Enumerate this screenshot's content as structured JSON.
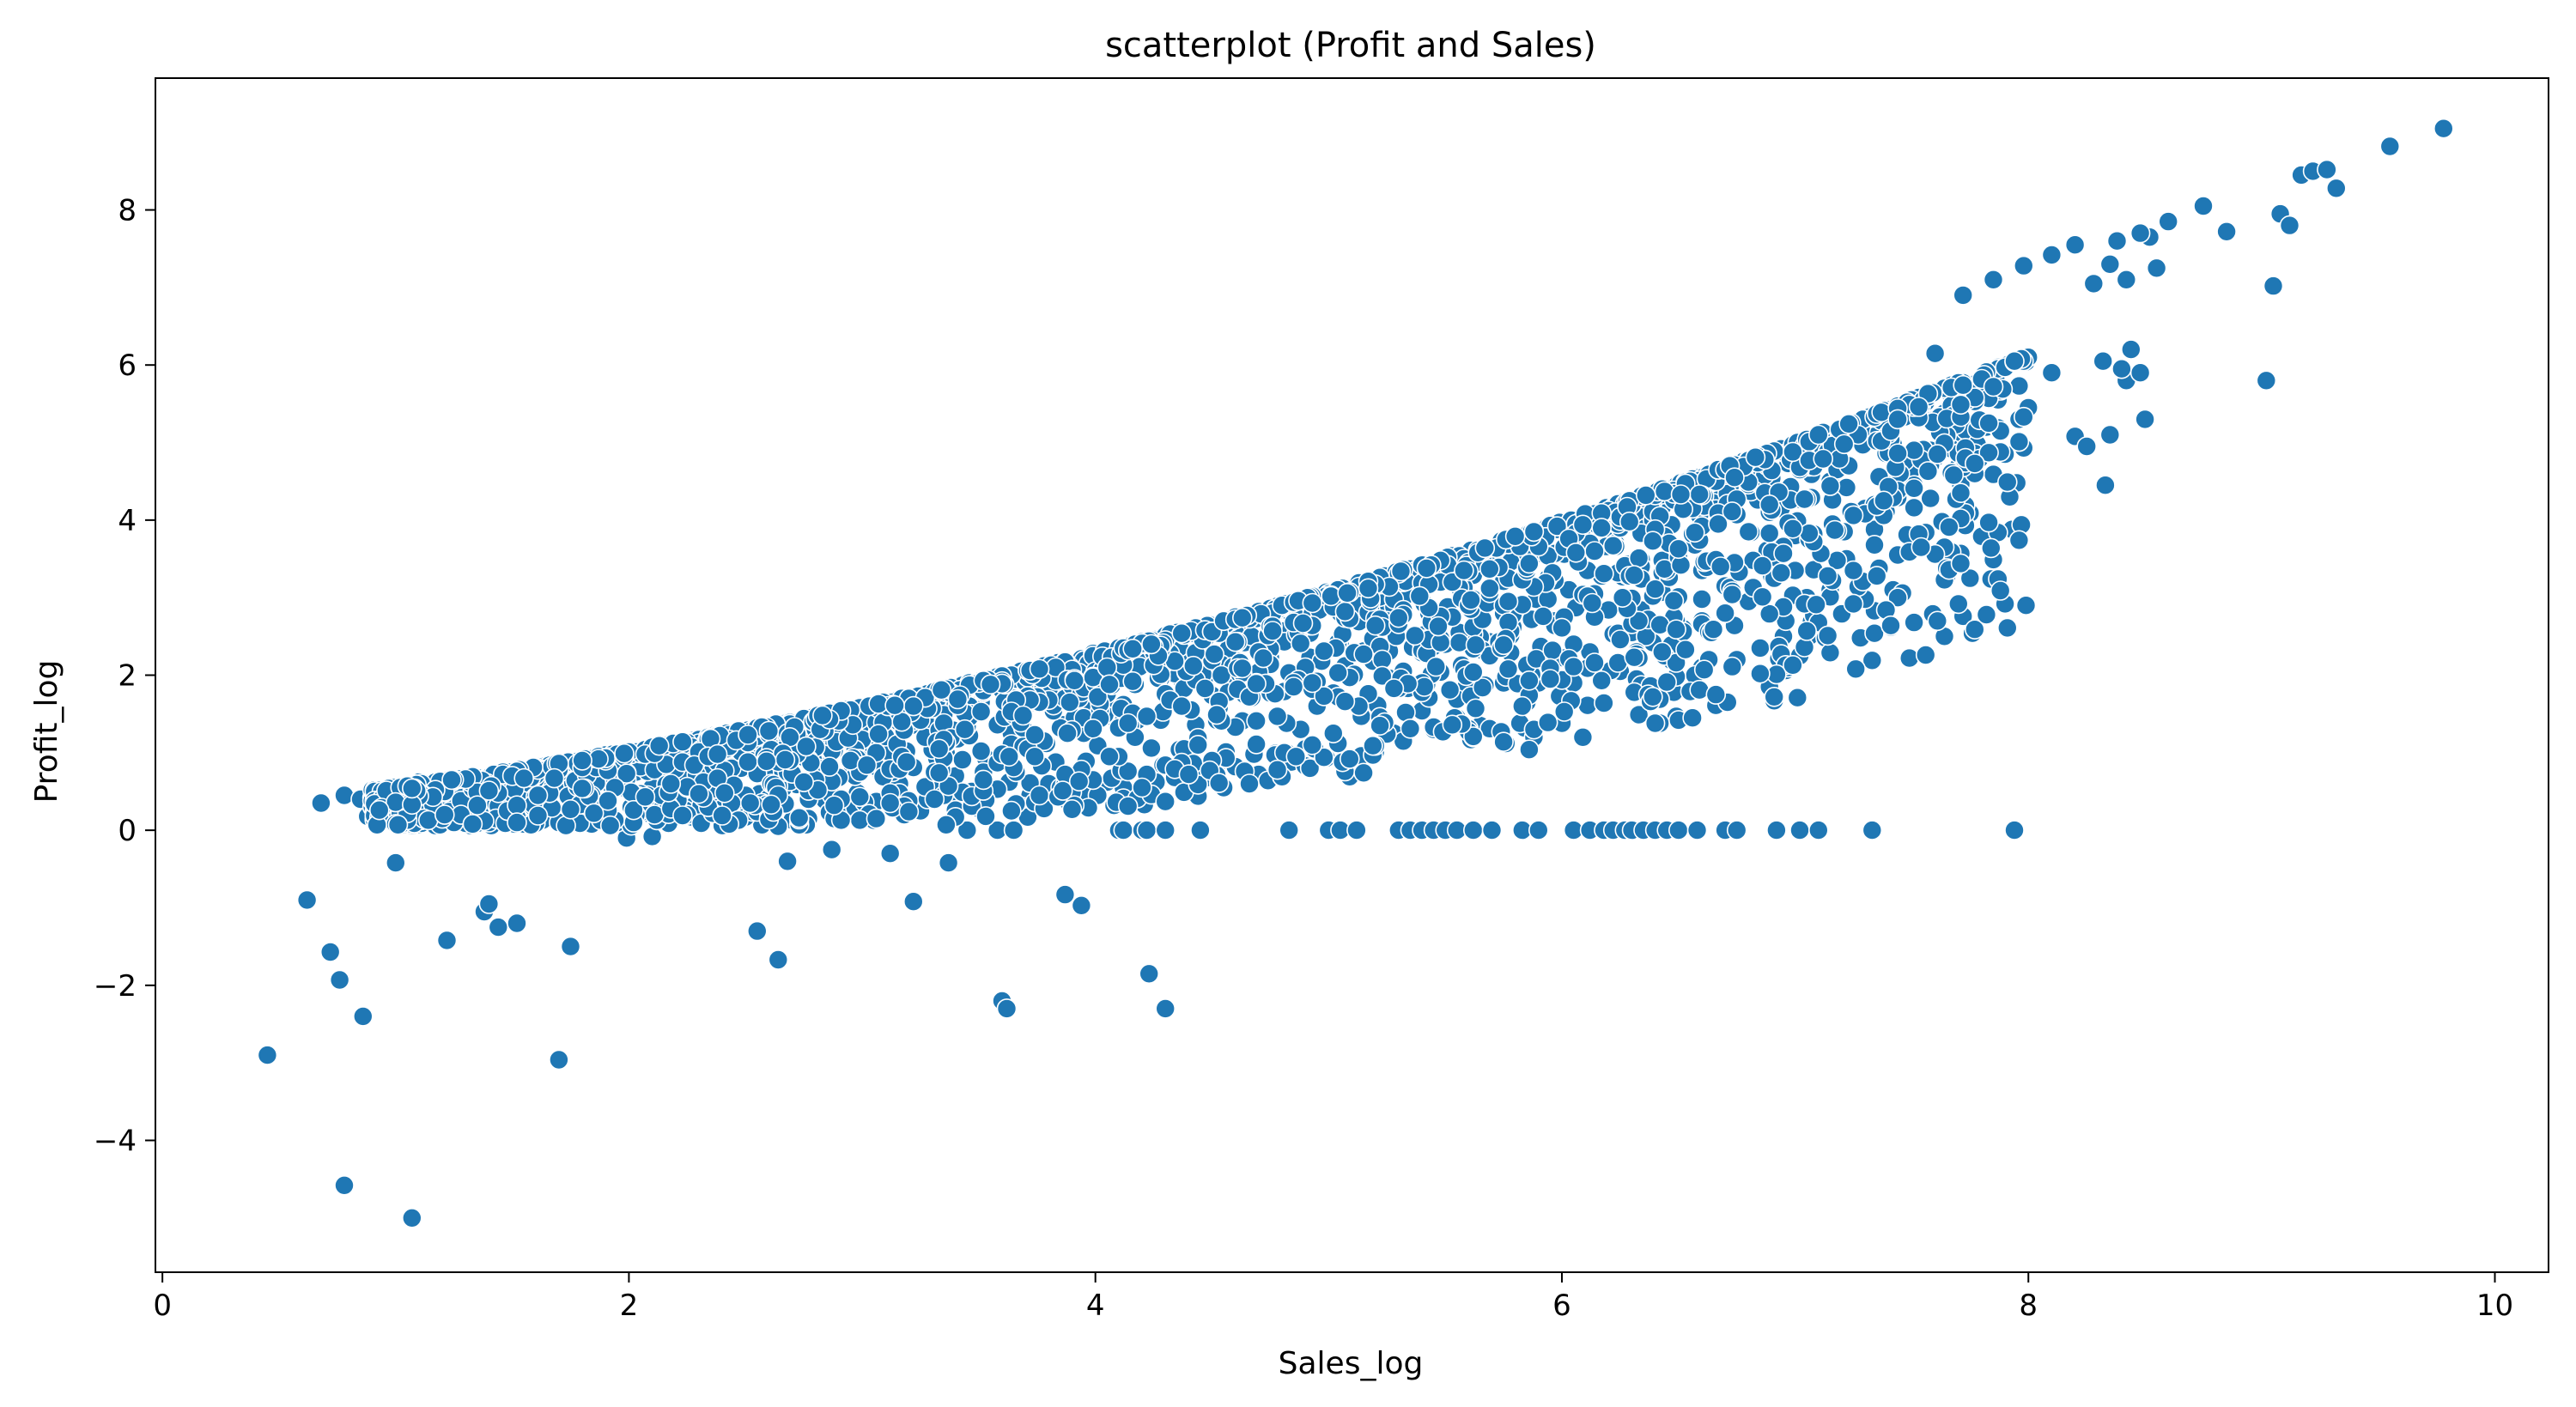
{
  "chart_data": {
    "type": "scatter",
    "title": "scatterplot (Profit and Sales)",
    "xlabel": "Sales_log",
    "ylabel": "Profit_log",
    "xlim": [
      -0.03,
      10.23
    ],
    "ylim": [
      -5.7,
      9.7
    ],
    "xticks": [
      0,
      2,
      4,
      6,
      8,
      10
    ],
    "yticks": [
      -4,
      -2,
      0,
      2,
      4,
      6,
      8
    ],
    "ytick_labels": [
      "−4",
      "−2",
      "0",
      "2",
      "4",
      "6",
      "8"
    ],
    "grid": false,
    "legend": "none",
    "color": "#1f77b4",
    "points": [
      [
        0.45,
        -2.9
      ],
      [
        0.62,
        -0.9
      ],
      [
        0.72,
        -1.57
      ],
      [
        0.76,
        -1.93
      ],
      [
        0.78,
        -4.58
      ],
      [
        0.86,
        -2.4
      ],
      [
        1.0,
        -0.42
      ],
      [
        1.07,
        -5.0
      ],
      [
        1.22,
        -1.42
      ],
      [
        1.38,
        -1.05
      ],
      [
        1.4,
        -0.95
      ],
      [
        1.44,
        -1.25
      ],
      [
        1.52,
        -1.2
      ],
      [
        1.7,
        -2.96
      ],
      [
        1.75,
        -1.5
      ],
      [
        3.22,
        -0.92
      ],
      [
        3.37,
        -0.42
      ],
      [
        2.55,
        -1.3
      ],
      [
        2.64,
        -1.67
      ],
      [
        2.68,
        -0.4
      ],
      [
        2.87,
        -0.25
      ],
      [
        3.12,
        -0.3
      ],
      [
        3.6,
        -2.2
      ],
      [
        3.62,
        -2.3
      ],
      [
        3.87,
        -0.83
      ],
      [
        3.94,
        -0.97
      ],
      [
        4.23,
        -1.85
      ],
      [
        4.3,
        -2.3
      ],
      [
        1.99,
        -0.1
      ],
      [
        2.1,
        -0.08
      ],
      [
        4.1,
        0
      ],
      [
        4.12,
        0
      ],
      [
        4.2,
        0
      ],
      [
        4.22,
        0
      ],
      [
        4.3,
        0
      ],
      [
        4.45,
        0
      ],
      [
        4.83,
        0
      ],
      [
        5.0,
        0
      ],
      [
        5.05,
        0
      ],
      [
        5.12,
        0
      ],
      [
        5.3,
        0
      ],
      [
        5.35,
        0
      ],
      [
        5.4,
        0
      ],
      [
        5.45,
        0
      ],
      [
        5.5,
        0
      ],
      [
        5.55,
        0
      ],
      [
        5.62,
        0
      ],
      [
        5.7,
        0
      ],
      [
        5.83,
        0
      ],
      [
        5.9,
        0
      ],
      [
        6.05,
        0
      ],
      [
        6.12,
        0
      ],
      [
        6.18,
        0
      ],
      [
        6.22,
        0
      ],
      [
        6.27,
        0
      ],
      [
        6.3,
        0
      ],
      [
        6.35,
        0
      ],
      [
        6.4,
        0
      ],
      [
        6.45,
        0
      ],
      [
        6.5,
        0
      ],
      [
        6.58,
        0
      ],
      [
        6.7,
        0
      ],
      [
        6.75,
        0
      ],
      [
        6.92,
        0
      ],
      [
        7.02,
        0
      ],
      [
        7.1,
        0
      ],
      [
        7.33,
        0
      ],
      [
        7.94,
        0
      ],
      [
        0.68,
        0.35
      ],
      [
        0.78,
        0.45
      ],
      [
        0.85,
        0.4
      ],
      [
        0.9,
        0.42
      ],
      [
        0.95,
        0.5
      ],
      [
        1.0,
        0.55
      ],
      [
        1.05,
        0.5
      ],
      [
        1.1,
        0.62
      ],
      [
        1.15,
        0.6
      ],
      [
        1.2,
        0.55
      ],
      [
        0.88,
        0.18
      ],
      [
        0.96,
        0.22
      ],
      [
        1.02,
        0.15
      ],
      [
        1.12,
        0.18
      ],
      [
        1.25,
        0.15
      ],
      [
        2.95,
        0.22
      ],
      [
        3.05,
        0.2
      ],
      [
        3.18,
        0.2
      ],
      [
        3.25,
        0.25
      ],
      [
        3.42,
        0.3
      ],
      [
        3.5,
        0.28
      ],
      [
        3.58,
        0.0
      ],
      [
        3.45,
        0.0
      ],
      [
        3.65,
        0.0
      ],
      [
        3.72,
        0.45
      ],
      [
        3.8,
        0.6
      ],
      [
        3.85,
        0.55
      ],
      [
        3.97,
        0.48
      ],
      [
        4.05,
        0.62
      ],
      [
        4.12,
        0.55
      ],
      [
        4.4,
        0.7
      ],
      [
        4.52,
        0.75
      ],
      [
        4.6,
        0.82
      ],
      [
        4.7,
        0.72
      ],
      [
        4.82,
        1.0
      ],
      [
        4.9,
        1.05
      ],
      [
        4.95,
        0.95
      ],
      [
        5.2,
        1.5
      ],
      [
        5.28,
        1.25
      ],
      [
        5.32,
        1.15
      ],
      [
        5.45,
        1.3
      ],
      [
        5.55,
        1.45
      ],
      [
        5.65,
        1.35
      ],
      [
        5.75,
        1.9
      ],
      [
        5.85,
        1.65
      ],
      [
        6.0,
        1.85
      ],
      [
        6.12,
        2.3
      ],
      [
        6.25,
        2.05
      ],
      [
        6.32,
        1.95
      ],
      [
        6.42,
        2.35
      ],
      [
        6.52,
        2.6
      ],
      [
        6.6,
        2.1
      ],
      [
        6.75,
        2.2
      ],
      [
        6.85,
        2.35
      ],
      [
        6.95,
        2.5
      ],
      [
        7.05,
        3.0
      ],
      [
        7.15,
        3.1
      ],
      [
        7.22,
        3.5
      ],
      [
        7.42,
        3.1
      ],
      [
        7.44,
        3.55
      ],
      [
        6.7,
        3.15
      ],
      [
        6.6,
        3.35
      ],
      [
        6.8,
        2.95
      ],
      [
        6.9,
        3.4
      ],
      [
        7.0,
        3.8
      ],
      [
        7.3,
        4.15
      ],
      [
        7.4,
        4.45
      ],
      [
        7.48,
        4.6
      ],
      [
        7.6,
        4.8
      ],
      [
        7.7,
        5.0
      ],
      [
        7.82,
        5.2
      ],
      [
        7.9,
        4.85
      ],
      [
        8.0,
        5.45
      ],
      [
        8.1,
        5.9
      ],
      [
        8.2,
        5.08
      ],
      [
        8.25,
        4.95
      ],
      [
        8.32,
        6.05
      ],
      [
        8.42,
        5.8
      ],
      [
        8.48,
        5.9
      ],
      [
        8.5,
        5.3
      ],
      [
        8.33,
        4.45
      ],
      [
        8.35,
        5.1
      ],
      [
        8.4,
        5.95
      ],
      [
        8.44,
        6.2
      ],
      [
        7.6,
        6.15
      ],
      [
        8.28,
        7.05
      ],
      [
        8.35,
        7.3
      ],
      [
        8.42,
        7.1
      ],
      [
        8.52,
        7.65
      ],
      [
        8.55,
        7.25
      ],
      [
        8.6,
        7.85
      ],
      [
        8.75,
        8.05
      ],
      [
        8.85,
        7.72
      ],
      [
        9.02,
        5.8
      ],
      [
        9.05,
        7.02
      ],
      [
        9.08,
        7.95
      ],
      [
        9.12,
        7.8
      ],
      [
        9.17,
        8.45
      ],
      [
        9.22,
        8.5
      ],
      [
        9.28,
        8.52
      ],
      [
        9.32,
        8.28
      ],
      [
        9.55,
        8.82
      ],
      [
        9.78,
        9.05
      ],
      [
        8.48,
        7.7
      ],
      [
        8.38,
        7.6
      ],
      [
        8.2,
        7.55
      ],
      [
        8.1,
        7.42
      ],
      [
        7.98,
        7.28
      ],
      [
        7.85,
        7.1
      ],
      [
        7.72,
        6.9
      ]
    ]
  }
}
